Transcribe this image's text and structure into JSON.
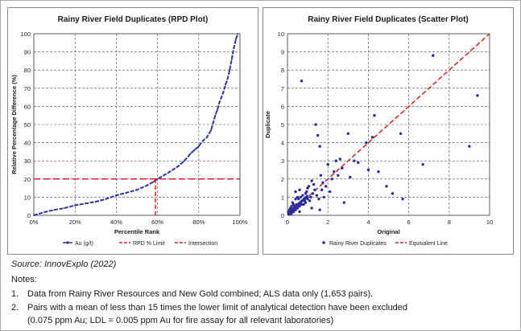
{
  "chart_data": [
    {
      "type": "line",
      "title": "Rainy River Field Duplicates (RPD Plot)",
      "xlabel": "Percentile Rank",
      "ylabel": "Relative Percentage Difference (%)",
      "xlim": [
        0,
        100
      ],
      "ylim": [
        0,
        100
      ],
      "x_ticks": [
        "0%",
        "20%",
        "40%",
        "60%",
        "80%",
        "100%"
      ],
      "y_ticks": [
        "0",
        "10",
        "20",
        "30",
        "40",
        "50",
        "60",
        "70",
        "80",
        "90",
        "100"
      ],
      "grid": true,
      "legend_position": "bottom",
      "legend": [
        "Au (g/t)",
        "RPD % Limit",
        "Intersection"
      ],
      "series": [
        {
          "name": "Au (g/t)",
          "color": "#3333a8",
          "x": [
            0,
            3,
            6,
            10,
            15,
            20,
            25,
            30,
            35,
            40,
            45,
            50,
            55,
            58,
            60,
            63,
            66,
            70,
            73,
            76,
            78,
            80,
            82,
            84,
            86,
            88,
            89,
            90,
            91,
            92,
            93,
            94,
            95,
            96,
            97,
            98,
            99
          ],
          "y": [
            0,
            1,
            2,
            3,
            4,
            5.5,
            6.5,
            7.5,
            9,
            11,
            12.5,
            14,
            16.5,
            18.5,
            20,
            22,
            24,
            27,
            30,
            34,
            36,
            38,
            41,
            43,
            47,
            55,
            58,
            62,
            65,
            68,
            72,
            75,
            80,
            86,
            92,
            97,
            100
          ]
        },
        {
          "name": "RPD % Limit",
          "color": "#dd2020",
          "x": [
            0,
            100
          ],
          "y": [
            20,
            20
          ]
        },
        {
          "name": "Intersection",
          "color": "#dd2020",
          "x": [
            59,
            59
          ],
          "y": [
            0,
            20
          ]
        }
      ]
    },
    {
      "type": "scatter",
      "title": "Rainy River Field Duplicates (Scatter Plot)",
      "xlabel": "Original",
      "ylabel": "Duplicate",
      "xlim": [
        0,
        10
      ],
      "ylim": [
        0,
        10
      ],
      "x_ticks": [
        "0",
        "2",
        "4",
        "6",
        "8",
        "10"
      ],
      "y_ticks": [
        "0",
        "1",
        "2",
        "3",
        "4",
        "5",
        "6",
        "7",
        "8",
        "9",
        "10"
      ],
      "grid": true,
      "legend_position": "bottom",
      "legend": [
        "Rainy River Duplicates",
        "Equivalent Line"
      ],
      "series": [
        {
          "name": "Rainy River Duplicates",
          "color": "#2b2b9a",
          "x": [
            0.7,
            7.2,
            9.4,
            9.0,
            5.6,
            5.7,
            6.7,
            4.5,
            4.2,
            4.3,
            3.9,
            4.0,
            3.3,
            3.0,
            2.6,
            2.7,
            2.4,
            2.2,
            2.0,
            1.9,
            1.6,
            1.5,
            1.4,
            1.7,
            1.8,
            1.2,
            1.0,
            0.9,
            1.1,
            2.5,
            2.8,
            3.1,
            3.5,
            4.9,
            5.2,
            0.5,
            0.6,
            0.8,
            0.3,
            0.4,
            0.2,
            0.15,
            0.1,
            0.05,
            0.25,
            0.35,
            0.45,
            0.55,
            0.65,
            0.75,
            0.85,
            0.95,
            1.05,
            1.15,
            1.25,
            1.35,
            0.2,
            0.3,
            0.4,
            0.5,
            0.6,
            0.7,
            0.8,
            0.9,
            1.0,
            0.1,
            0.2,
            0.3,
            0.1,
            0.15,
            0.25,
            0.05,
            0.12,
            0.18,
            0.22,
            0.28,
            0.32,
            0.38,
            0.42,
            0.48,
            0.52,
            0.58,
            0.62,
            0.68,
            0.72,
            0.78,
            0.82,
            0.88,
            0.92,
            0.98,
            1.3,
            1.45,
            1.55,
            1.65,
            1.75,
            2.1,
            2.3,
            0.4,
            0.6,
            1.2,
            1.6
          ],
          "y": [
            7.4,
            8.8,
            6.6,
            3.8,
            4.5,
            0.9,
            2.8,
            2.4,
            4.3,
            5.5,
            4.0,
            2.5,
            3.0,
            4.5,
            3.1,
            2.6,
            3.0,
            2.0,
            2.8,
            1.6,
            3.8,
            4.4,
            5.0,
            1.4,
            1.0,
            1.9,
            1.5,
            1.2,
            0.8,
            2.2,
            0.7,
            2.1,
            2.9,
            1.6,
            1.2,
            1.0,
            1.4,
            0.8,
            0.6,
            0.9,
            0.5,
            0.4,
            0.3,
            0.2,
            0.7,
            0.5,
            0.6,
            0.9,
            1.0,
            1.1,
            0.8,
            1.3,
            1.6,
            1.0,
            1.2,
            1.4,
            0.2,
            0.3,
            0.3,
            0.4,
            0.5,
            0.6,
            0.6,
            0.7,
            0.9,
            0.1,
            0.1,
            0.2,
            0.05,
            0.15,
            0.2,
            0.1,
            0.12,
            0.25,
            0.3,
            0.35,
            0.4,
            0.45,
            0.5,
            0.55,
            0.6,
            0.65,
            0.7,
            0.75,
            0.8,
            0.85,
            0.9,
            0.95,
            1.0,
            1.05,
            1.7,
            1.1,
            0.9,
            2.2,
            1.8,
            1.3,
            2.4,
            1.3,
            0.2,
            0.4,
            0.3
          ]
        },
        {
          "name": "Equivalent Line",
          "color": "#dd2020",
          "x": [
            0,
            10
          ],
          "y": [
            0,
            10
          ]
        }
      ]
    }
  ],
  "source": "Source: InnovExplo (2022)",
  "notes_heading": "Notes:",
  "notes": [
    {
      "num": "1.",
      "text": "Data from Rainy River Resources and New Gold combined; ALS data only (1,653 pairs)."
    },
    {
      "num": "2.",
      "text": "Pairs with a mean of less than 15 times the lower limit of analytical detection have been excluded"
    }
  ],
  "note2_continued": "(0.075 ppm Au; LDL = 0.005 ppm Au for fire assay for all relevant laboratories)"
}
